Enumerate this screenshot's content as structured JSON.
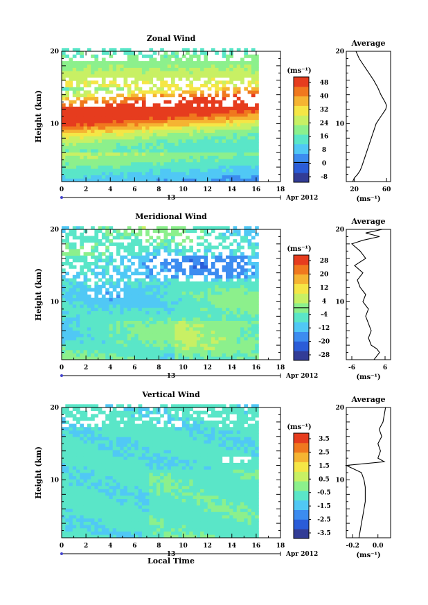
{
  "chart_data": [
    {
      "type": "heatmap",
      "title": "Zonal Wind",
      "ylabel": "Height (km)",
      "ylim": [
        2,
        20
      ],
      "xlim": [
        0,
        18
      ],
      "x_ticks": [
        "0",
        "2",
        "4",
        "6",
        "8",
        "10",
        "12",
        "14",
        "16",
        "18"
      ],
      "y_ticks": [
        "10",
        "20"
      ],
      "date_label": "13",
      "month_label": "Apr 2012",
      "colorbar": {
        "unit": "(ms⁻¹)",
        "labels": [
          "48",
          "40",
          "32",
          "24",
          "16",
          "8",
          "0",
          "-8"
        ],
        "range": [
          -12,
          52
        ]
      },
      "profile": {
        "title": "Average",
        "xlabel": "(ms⁻¹)",
        "x_ticks": [
          "20",
          "60"
        ],
        "xlim": [
          10,
          65
        ],
        "y_ticks": [
          "10",
          "20"
        ],
        "heights_km": [
          2,
          2.5,
          3,
          3.5,
          4,
          5,
          6,
          7,
          8,
          9,
          10,
          10.5,
          11,
          11.5,
          12,
          12.5,
          13,
          14,
          15,
          16,
          17,
          18,
          19,
          20
        ],
        "values": [
          18,
          20,
          24,
          27,
          29,
          32,
          35,
          38,
          41,
          44,
          47,
          50,
          53,
          56,
          59,
          60,
          58,
          53,
          49,
          44,
          38,
          32,
          26,
          22
        ]
      }
    },
    {
      "type": "heatmap",
      "title": "Meridional Wind",
      "ylabel": "Height (km)",
      "ylim": [
        2,
        20
      ],
      "xlim": [
        0,
        18
      ],
      "x_ticks": [
        "0",
        "2",
        "4",
        "6",
        "8",
        "10",
        "12",
        "14",
        "16",
        "18"
      ],
      "y_ticks": [
        "10",
        "20"
      ],
      "date_label": "13",
      "month_label": "Apr 2012",
      "colorbar": {
        "unit": "(ms⁻¹)",
        "labels": [
          "28",
          "20",
          "12",
          "4",
          "-4",
          "-12",
          "-20",
          "-28"
        ],
        "range": [
          -32,
          32
        ]
      },
      "profile": {
        "title": "Average",
        "xlabel": "(ms⁻¹)",
        "x_ticks": [
          "-6",
          "6"
        ],
        "xlim": [
          -8,
          8
        ],
        "y_ticks": [
          "10",
          "20"
        ],
        "heights_km": [
          2,
          2.5,
          3,
          3.5,
          4,
          5,
          6,
          7,
          8,
          9,
          10,
          11,
          12,
          13,
          14,
          15,
          16,
          17,
          18,
          18.5,
          19,
          19.5,
          20
        ],
        "values": [
          2,
          3,
          4,
          3,
          1,
          0,
          1,
          0,
          -1,
          0,
          -2,
          -1,
          -3,
          -4,
          -2,
          -5,
          -1,
          -3,
          -6,
          -2,
          4,
          -1,
          5
        ]
      }
    },
    {
      "type": "heatmap",
      "title": "Vertical Wind",
      "ylabel": "Height (km)",
      "xlabel": "Local Time",
      "ylim": [
        2,
        20
      ],
      "xlim": [
        0,
        18
      ],
      "x_ticks": [
        "0",
        "2",
        "4",
        "6",
        "8",
        "10",
        "12",
        "14",
        "16",
        "18"
      ],
      "y_ticks": [
        "10",
        "20"
      ],
      "date_label": "13",
      "month_label": "Apr 2012",
      "colorbar": {
        "unit": "(ms⁻¹)",
        "labels": [
          "3.5",
          "2.5",
          "1.5",
          "0.5",
          "-0.5",
          "-1.5",
          "-2.5",
          "-3.5"
        ],
        "range": [
          -4,
          4
        ]
      },
      "profile": {
        "title": "Average",
        "xlabel": "(ms⁻¹)",
        "x_ticks": [
          "-0.2",
          "0.0"
        ],
        "xlim": [
          -0.25,
          0.1
        ],
        "y_ticks": [
          "10",
          "20"
        ],
        "heights_km": [
          2,
          3,
          4,
          5,
          6,
          7,
          8,
          9,
          10,
          11,
          12,
          12.5,
          13,
          14,
          15,
          16,
          17,
          18,
          19,
          20
        ],
        "values": [
          -0.15,
          -0.14,
          -0.13,
          -0.12,
          -0.11,
          -0.1,
          -0.1,
          -0.1,
          -0.11,
          -0.13,
          -0.25,
          0.05,
          0.0,
          0.02,
          0.0,
          0.03,
          0.01,
          0.04,
          0.05,
          0.06
        ]
      }
    }
  ],
  "colors": {
    "palette": [
      "#323c96",
      "#2a5cd8",
      "#3c8cf0",
      "#50c8f5",
      "#5ae6c8",
      "#8cf08c",
      "#c8f064",
      "#f5e646",
      "#f5b432",
      "#f0781e",
      "#e63c1e"
    ],
    "zero_band": "#000000"
  }
}
